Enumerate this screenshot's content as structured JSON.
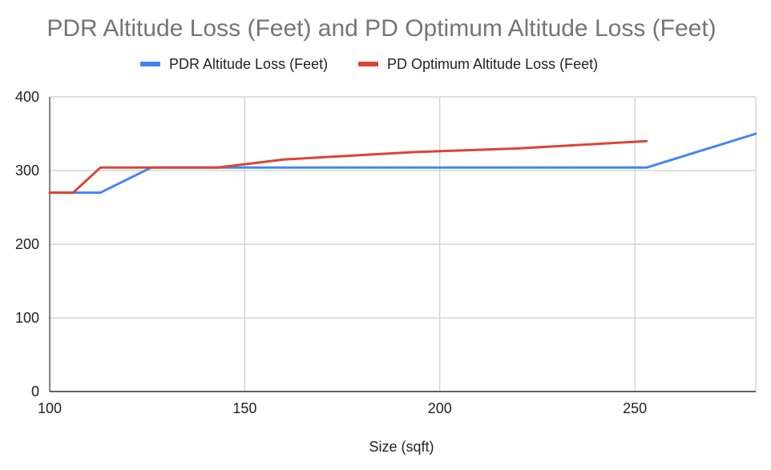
{
  "chart_data": {
    "type": "line",
    "title": "PDR Altitude Loss (Feet) and PD Optimum Altitude Loss (Feet)",
    "xlabel": "Size (sqft)",
    "ylabel": "",
    "xlim": [
      100,
      281
    ],
    "ylim": [
      0,
      400
    ],
    "xticks": [
      100,
      150,
      200,
      250
    ],
    "yticks": [
      0,
      100,
      200,
      300,
      400
    ],
    "xtick_labels": [
      "100",
      "150",
      "200",
      "250"
    ],
    "ytick_labels": [
      "0",
      "100",
      "200",
      "300",
      "400"
    ],
    "grid": true,
    "legend_position": "top",
    "series": [
      {
        "name": "PDR Altitude Loss (Feet)",
        "color": "#4285F4",
        "points": [
          [
            100,
            270
          ],
          [
            113,
            270
          ],
          [
            126,
            304
          ],
          [
            143,
            304
          ],
          [
            253,
            304
          ],
          [
            281,
            350
          ]
        ]
      },
      {
        "name": "PD Optimum Altitude Loss (Feet)",
        "color": "#DB4437",
        "points": [
          [
            100,
            270
          ],
          [
            106,
            270
          ],
          [
            113,
            304
          ],
          [
            143,
            304
          ],
          [
            160,
            315
          ],
          [
            193,
            325
          ],
          [
            220,
            330
          ],
          [
            253,
            340
          ]
        ]
      }
    ]
  }
}
